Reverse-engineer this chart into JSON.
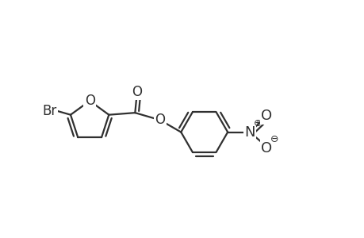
{
  "bg_color": "#ffffff",
  "line_color": "#303030",
  "line_width": 1.6,
  "font_size": 12,
  "figsize": [
    4.6,
    3.0
  ],
  "dpi": 100,
  "xlim": [
    -0.5,
    8.5
  ],
  "ylim": [
    1.5,
    5.2
  ]
}
